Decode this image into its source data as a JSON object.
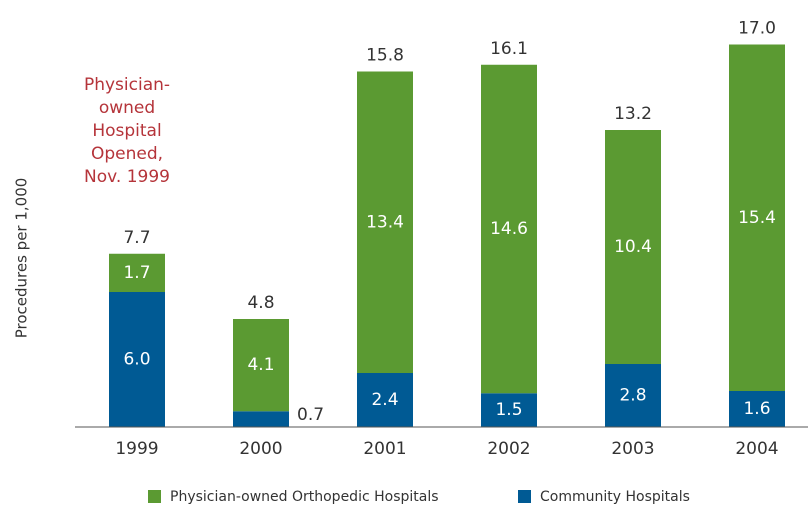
{
  "chart_data": {
    "type": "stacked_bar",
    "ylabel": "Procedures per 1,000",
    "categories": [
      "1999",
      "2000",
      "2001",
      "2002",
      "2003",
      "2004"
    ],
    "series": [
      {
        "name": "Community Hospitals",
        "color": "#005a94",
        "values": [
          6.0,
          0.7,
          2.4,
          1.5,
          2.8,
          1.6
        ],
        "value_labels": [
          "6.0",
          "0.7",
          "2.4",
          "1.5",
          "2.8",
          "1.6"
        ]
      },
      {
        "name": "Physician-owned Orthopedic Hospitals",
        "color": "#5b9a32",
        "values": [
          1.7,
          4.1,
          13.4,
          14.6,
          10.4,
          15.4
        ],
        "value_labels": [
          "1.7",
          "4.1",
          "13.4",
          "14.6",
          "10.4",
          "15.4"
        ]
      }
    ],
    "totals": {
      "values": [
        7.7,
        4.8,
        15.8,
        16.1,
        13.2,
        17.0
      ],
      "value_labels": [
        "7.7",
        "4.8",
        "15.8",
        "16.1",
        "13.2",
        "17.0"
      ]
    },
    "annotation": {
      "lines": [
        "Physician-",
        "owned",
        "Hospital",
        "Opened,",
        "Nov. 1999"
      ],
      "color": "#b5343a"
    },
    "legend_order": [
      1,
      0
    ],
    "ylim": [
      0,
      18
    ]
  }
}
